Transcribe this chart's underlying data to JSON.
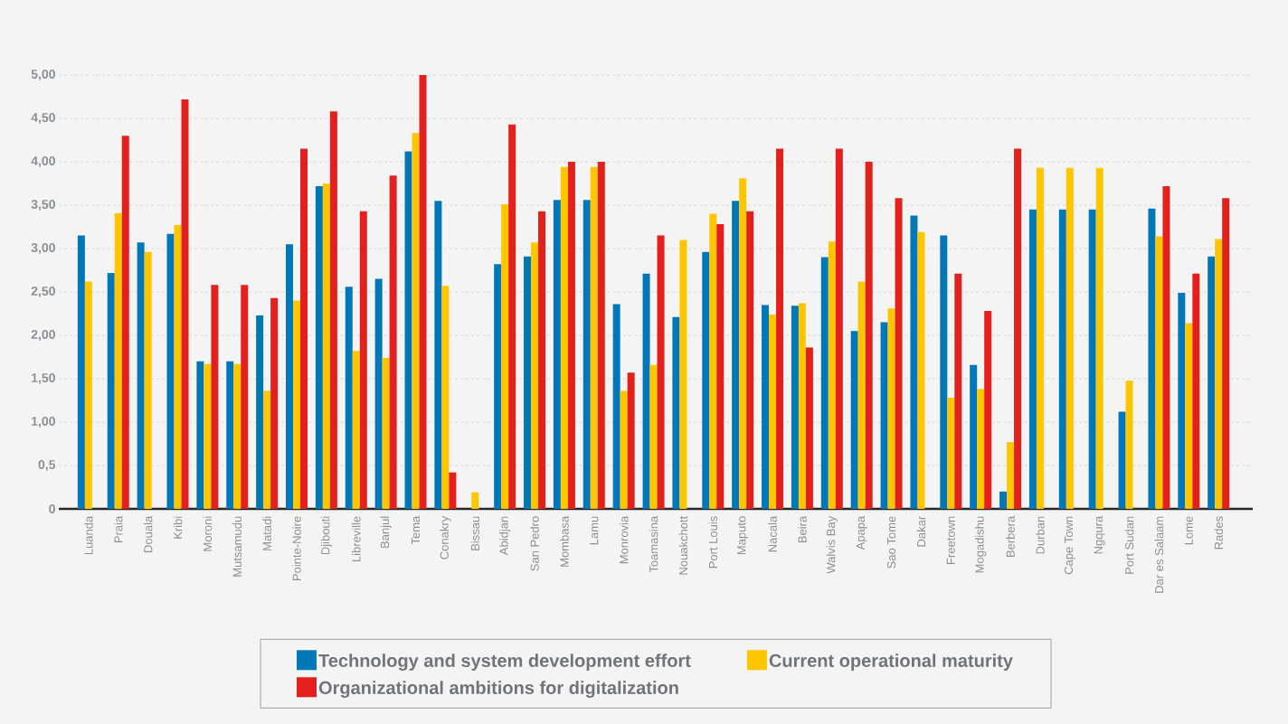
{
  "chart_data": {
    "type": "bar",
    "categories": [
      "Luanda",
      "Praia",
      "Douala",
      "Kribi",
      "Moroni",
      "Mutsamudu",
      "Matadi",
      "Pointe-Noire",
      "Djibouti",
      "Libreville",
      "Banjul",
      "Tema",
      "Conakry",
      "Bissau",
      "Abidjan",
      "San Pedro",
      "Mombasa",
      "Lamu",
      "Monrovia",
      "Toamasina",
      "Nouakchott",
      "Port Louis",
      "Maputo",
      "Nacala",
      "Beira",
      "Walvis Bay",
      "Apapa",
      "Sao Tome",
      "Dakar",
      "Freetown",
      "Mogadishu",
      "Berbera",
      "Durban",
      "Cape Town",
      "Ngqura",
      "Port Sudan",
      "Dar es Salaam",
      "Lome",
      "Rades"
    ],
    "series": [
      {
        "name": "Technology and system development effort",
        "color": "#0077b6",
        "values": [
          3.15,
          2.72,
          3.07,
          3.17,
          1.7,
          1.7,
          2.23,
          3.05,
          3.72,
          2.56,
          2.65,
          4.12,
          3.55,
          null,
          2.82,
          2.91,
          3.56,
          3.56,
          2.36,
          2.71,
          2.21,
          2.96,
          3.55,
          2.35,
          2.34,
          2.9,
          2.05,
          2.15,
          3.38,
          3.15,
          1.66,
          0.2,
          3.45,
          3.45,
          3.45,
          1.12,
          3.46,
          2.49,
          2.91
        ]
      },
      {
        "name": "Current operational maturity",
        "color": "#ffc600",
        "values": [
          2.62,
          3.41,
          2.96,
          3.27,
          1.67,
          1.67,
          1.36,
          2.4,
          3.75,
          1.82,
          1.74,
          4.33,
          2.57,
          0.19,
          3.51,
          3.07,
          3.94,
          3.94,
          1.36,
          1.66,
          3.1,
          3.4,
          3.81,
          2.24,
          2.37,
          3.08,
          2.62,
          2.31,
          3.19,
          1.28,
          1.38,
          0.77,
          3.93,
          3.93,
          3.93,
          1.48,
          3.14,
          2.14,
          3.11
        ]
      },
      {
        "name": "Organizational ambitions for digitalization",
        "color": "#e3201b",
        "values": [
          null,
          4.3,
          null,
          4.72,
          2.58,
          2.58,
          2.43,
          4.15,
          4.58,
          3.43,
          3.84,
          5.0,
          0.42,
          null,
          4.43,
          3.43,
          4.0,
          4.0,
          1.57,
          3.15,
          null,
          3.28,
          3.43,
          4.15,
          1.86,
          4.15,
          4.0,
          3.58,
          null,
          2.71,
          2.28,
          4.15,
          null,
          null,
          null,
          null,
          3.72,
          2.71,
          3.58
        ]
      }
    ],
    "ylim": [
      0,
      5
    ],
    "yticks": [
      0,
      {
        "value": 0.5,
        "label": "0,5"
      },
      {
        "value": 1,
        "label": "1,00"
      },
      {
        "value": 1.5,
        "label": "1,50"
      },
      {
        "value": 2,
        "label": "2,00"
      },
      {
        "value": 2.5,
        "label": "2,50"
      },
      {
        "value": 3,
        "label": "3,00"
      },
      {
        "value": 3.5,
        "label": "3,50"
      },
      {
        "value": 4,
        "label": "4,00"
      },
      {
        "value": 4.5,
        "label": "4,50"
      },
      {
        "value": 5,
        "label": "5,00"
      }
    ],
    "grid": "y",
    "legend": "bottom"
  }
}
